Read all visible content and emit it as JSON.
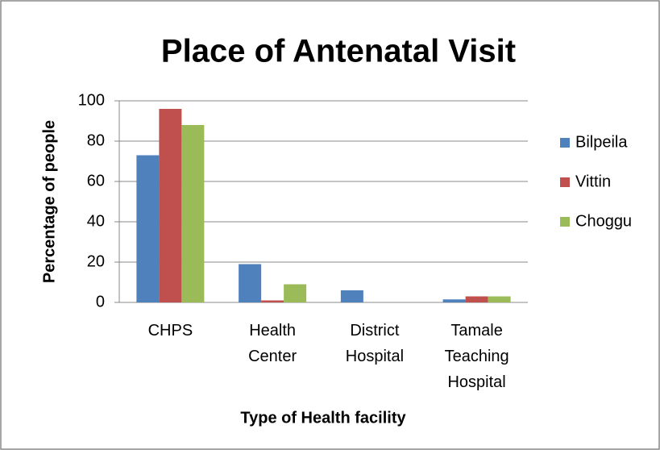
{
  "chart_data": {
    "type": "bar",
    "title": "Place of Antenatal Visit",
    "x_label": "Type of Health facility",
    "y_label": "Percentage of people",
    "categories": [
      "CHPS",
      "Health Center",
      "District Hospital",
      "Tamale Teaching Hospital"
    ],
    "series": [
      {
        "name": "Bilpeila",
        "color": "#4f81bd",
        "values": [
          73,
          19,
          6,
          1.5
        ]
      },
      {
        "name": "Vittin",
        "color": "#c0504d",
        "values": [
          96,
          1,
          0,
          3
        ]
      },
      {
        "name": "Choggu",
        "color": "#9bbb59",
        "values": [
          88,
          9,
          0,
          3
        ]
      }
    ],
    "ylim": [
      0,
      100
    ],
    "yticks": [
      0,
      20,
      40,
      60,
      80,
      100
    ],
    "grid": true,
    "legend": "right"
  }
}
